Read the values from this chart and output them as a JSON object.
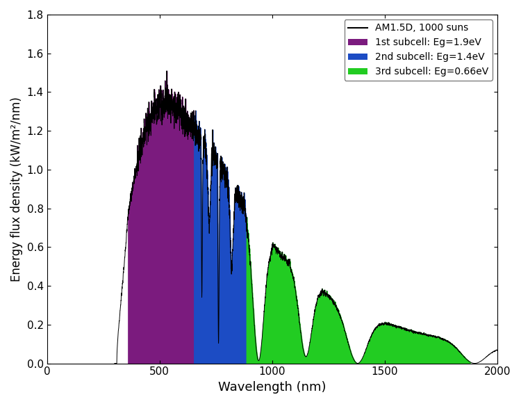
{
  "title": "",
  "xlabel": "Wavelength (nm)",
  "ylabel": "Energy flux density (kW/m²/nm)",
  "xlim": [
    0,
    2000
  ],
  "ylim": [
    0,
    1.8
  ],
  "xticks": [
    0,
    500,
    1000,
    1500,
    2000
  ],
  "yticks": [
    0.0,
    0.2,
    0.4,
    0.6,
    0.8,
    1.0,
    1.2,
    1.4,
    1.6,
    1.8
  ],
  "subcell1_color": "#7B1B7E",
  "subcell2_color": "#1C4CC4",
  "subcell3_color": "#22CC22",
  "spectrum_color": "#000000",
  "subcell1_label": "1st subcell: Eg=1.9eV",
  "subcell2_label": "2nd subcell: Eg=1.4eV",
  "subcell3_label": "3rd subcell: Eg=0.66eV",
  "spectrum_label": "AM1.5D, 1000 suns",
  "Eg1_nm": 653,
  "Eg2_nm": 886,
  "Eg3_nm": 1879,
  "figsize": [
    7.5,
    5.81
  ],
  "dpi": 100
}
